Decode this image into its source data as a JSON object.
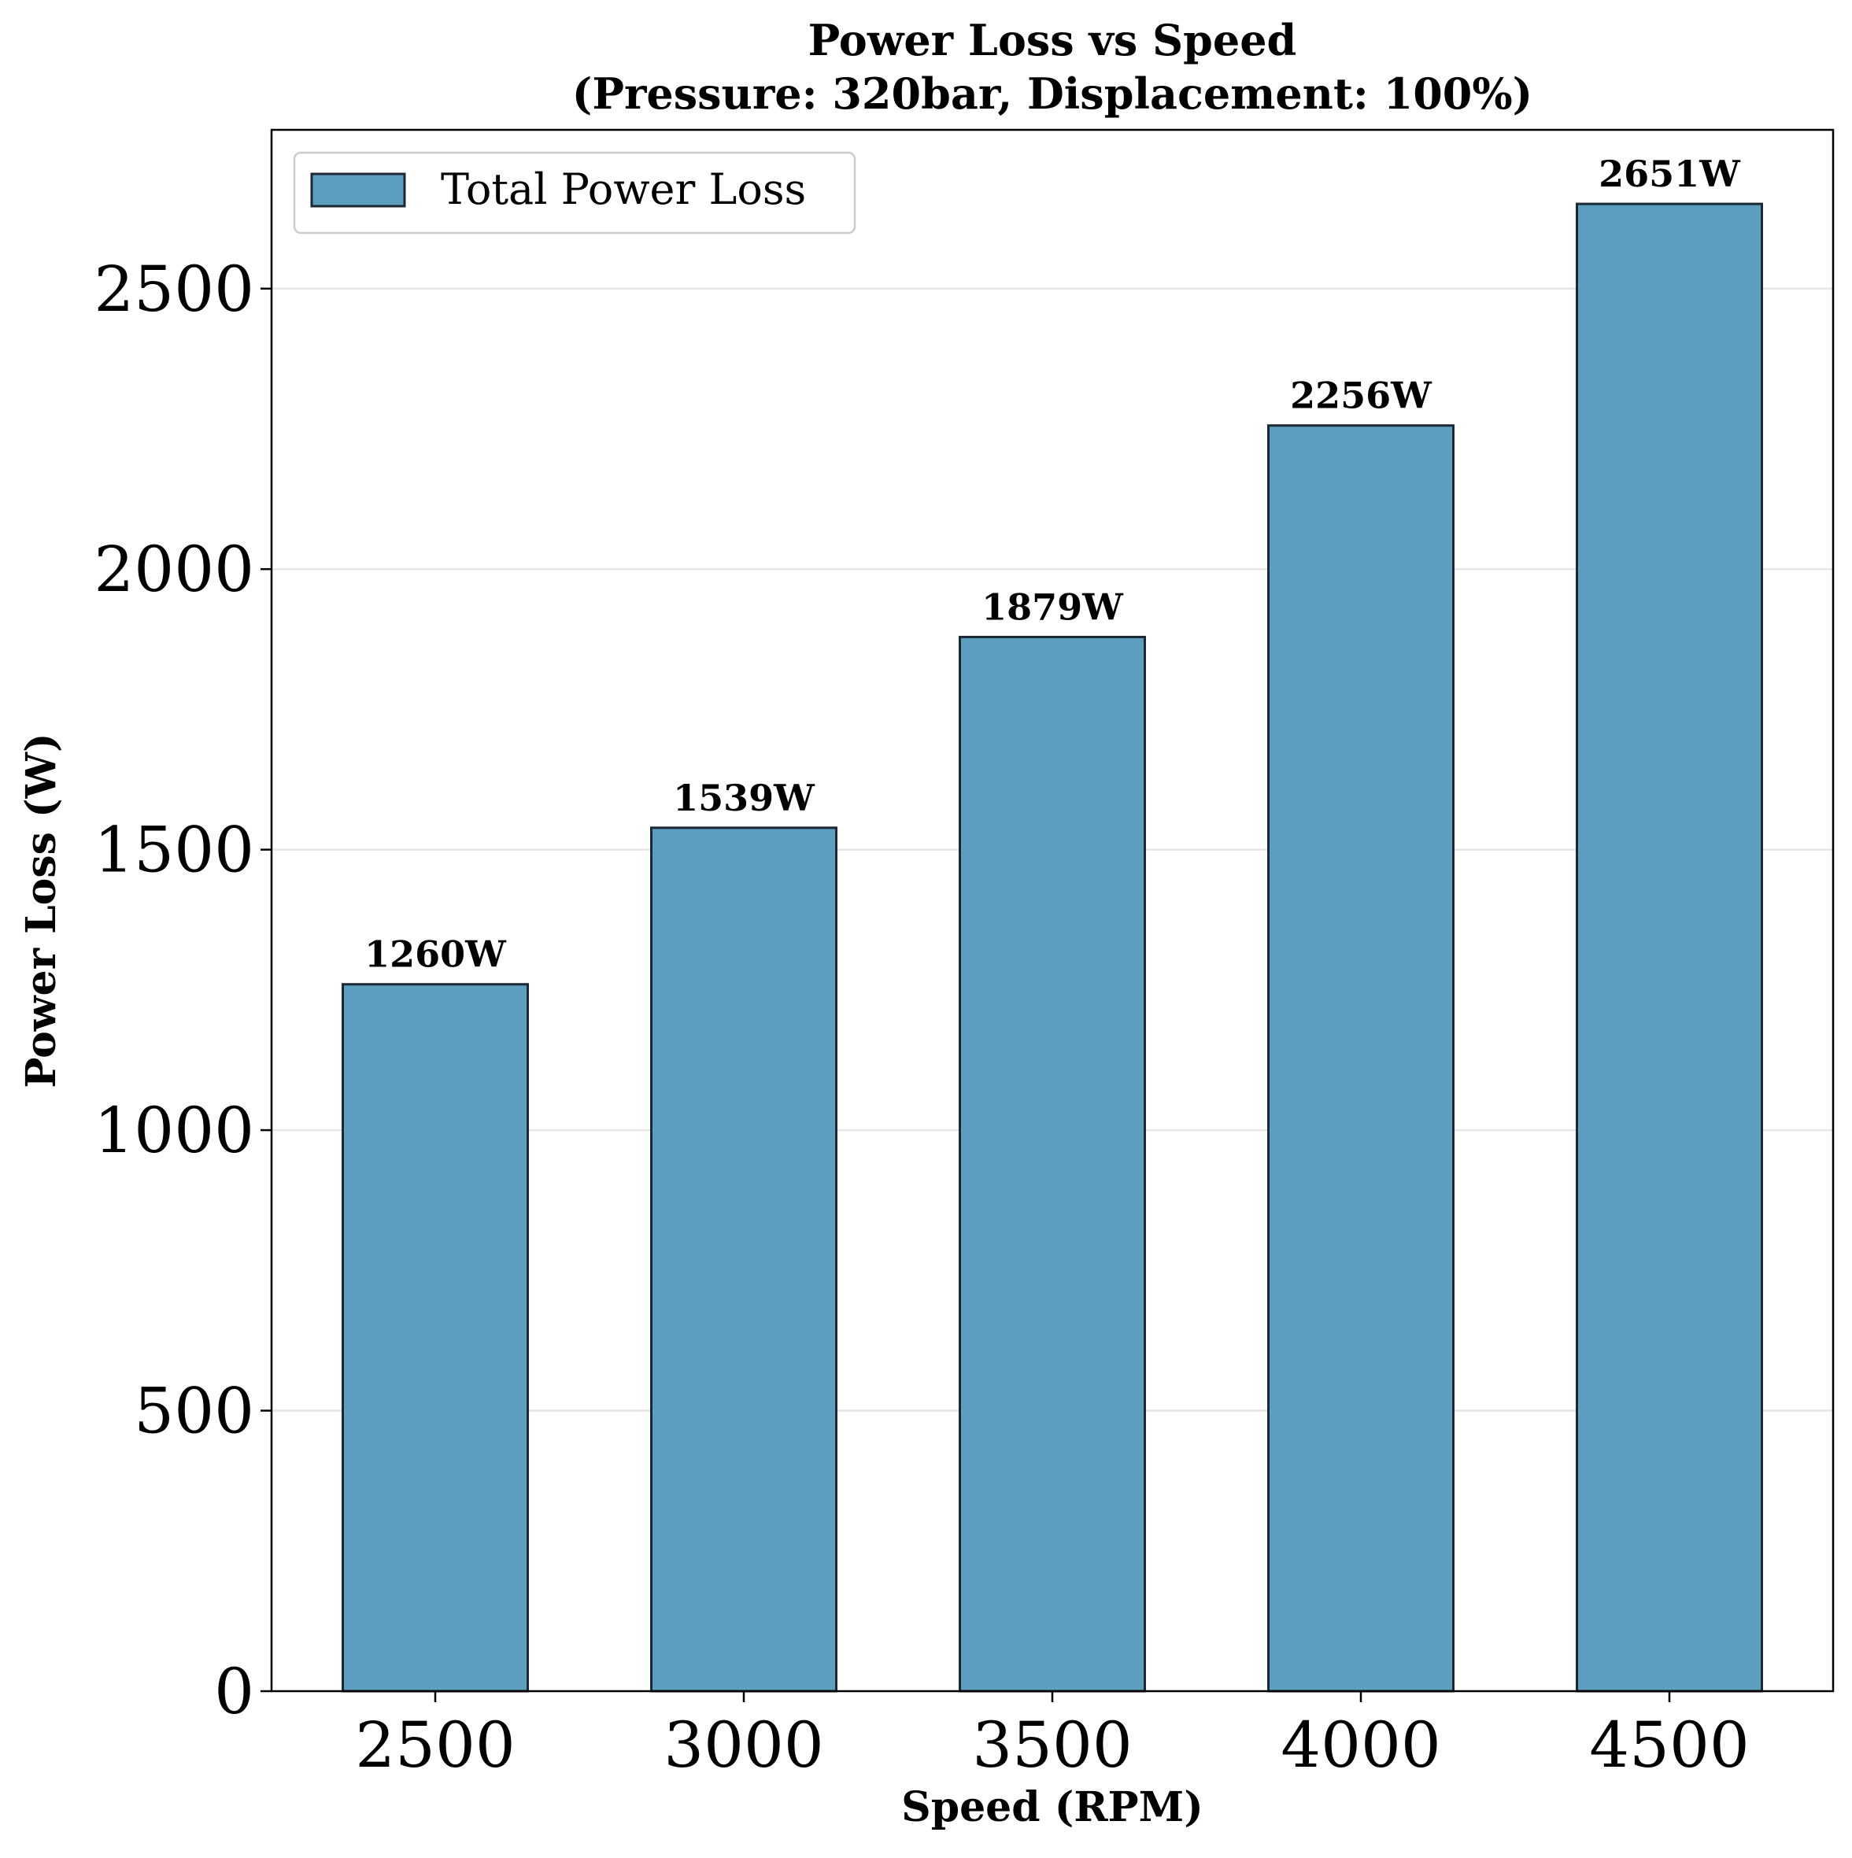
{
  "chart_data": {
    "type": "bar",
    "title": "Power Loss vs Speed",
    "subtitle": "(Pressure: 320bar, Displacement: 100%)",
    "xlabel": "Speed (RPM)",
    "ylabel": "Power Loss (W)",
    "categories": [
      "2500",
      "3000",
      "3500",
      "4000",
      "4500"
    ],
    "series": [
      {
        "name": "Total Power Loss",
        "values": [
          1260,
          1539,
          1879,
          2256,
          2651
        ],
        "labels": [
          "1260W",
          "1539W",
          "1879W",
          "2256W",
          "2651W"
        ],
        "color": "#5b9ebd",
        "edge_color": "#1c2833"
      }
    ],
    "ylim": [
      0,
      2783
    ],
    "yticks": [
      0,
      500,
      1000,
      1500,
      2000,
      2500
    ],
    "grid": "y",
    "legend_position": "top-left"
  }
}
